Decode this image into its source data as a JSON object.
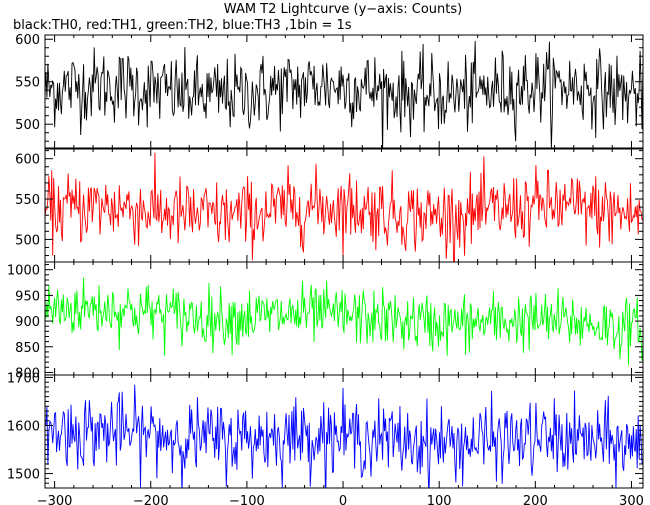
{
  "chart_data": {
    "type": "line",
    "title": "WAM T2 Lightcurve (y−axis: Counts)",
    "subtitle": "black:TH0, red:TH1, green:TH2, blue:TH3 ,1bin = 1s",
    "x_range": [
      -310,
      312
    ],
    "x_ticks": [
      -300,
      -200,
      -100,
      0,
      100,
      200,
      300
    ],
    "bin_seconds": 1,
    "series": [
      {
        "name": "TH0",
        "color": "#000000",
        "mean": 540,
        "std": 22,
        "y_range": [
          472,
          605
        ],
        "y_ticks": [
          500,
          550,
          600
        ]
      },
      {
        "name": "TH1",
        "color": "#ff0000",
        "mean": 535,
        "std": 22,
        "y_range": [
          472,
          612
        ],
        "y_ticks": [
          500,
          550,
          600
        ]
      },
      {
        "name": "TH2",
        "color": "#00ff00",
        "mean": 905,
        "mean_start": 922,
        "mean_end": 890,
        "std": 28,
        "y_range": [
          795,
          1015
        ],
        "y_ticks": [
          800,
          850,
          900,
          950,
          1000
        ]
      },
      {
        "name": "TH3",
        "color": "#0000ff",
        "mean": 1575,
        "mean_start": 1585,
        "mean_end": 1562,
        "std": 38,
        "y_range": [
          1470,
          1705
        ],
        "y_ticks": [
          1500,
          1600,
          1700
        ]
      }
    ]
  }
}
